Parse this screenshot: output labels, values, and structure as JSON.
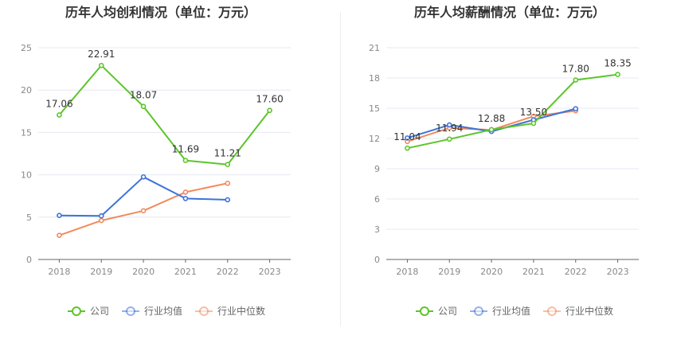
{
  "colors": {
    "company": "#5cc52a",
    "industry_avg": "#3d73d9",
    "industry_median": "#f28a5c",
    "grid": "#e6e8f0",
    "axis": "#666666",
    "divider": "#eeeeee"
  },
  "legend": {
    "company": "公司",
    "industry_avg": "行业均值",
    "industry_median": "行业中位数"
  },
  "chart_data": [
    {
      "type": "line",
      "title": "历年人均创利情况（单位：万元）",
      "categories": [
        "2018",
        "2019",
        "2020",
        "2021",
        "2022",
        "2023"
      ],
      "ylim": [
        0,
        25
      ],
      "yticks": [
        0,
        5,
        10,
        15,
        20,
        25
      ],
      "grid": true,
      "legend_position": "bottom",
      "series": [
        {
          "name": "公司",
          "key": "company",
          "values": [
            17.06,
            22.91,
            18.07,
            11.69,
            11.21,
            17.6
          ],
          "labels": [
            "17.06",
            "22.91",
            "18.07",
            "11.69",
            "11.21",
            "17.60"
          ]
        },
        {
          "name": "行业均值",
          "key": "industry_avg",
          "values": [
            5.2,
            5.15,
            9.75,
            7.2,
            7.05,
            null
          ]
        },
        {
          "name": "行业中位数",
          "key": "industry_median",
          "values": [
            2.85,
            4.6,
            5.75,
            7.95,
            9.0,
            null
          ]
        }
      ]
    },
    {
      "type": "line",
      "title": "历年人均薪酬情况（单位：万元）",
      "categories": [
        "2018",
        "2019",
        "2020",
        "2021",
        "2022",
        "2023"
      ],
      "ylim": [
        0,
        21
      ],
      "yticks": [
        0,
        3,
        6,
        9,
        12,
        15,
        18,
        21
      ],
      "grid": true,
      "legend_position": "bottom",
      "series": [
        {
          "name": "公司",
          "key": "company",
          "values": [
            11.04,
            11.94,
            12.88,
            13.5,
            17.8,
            18.35
          ],
          "labels": [
            "11.04",
            "11.94",
            "12.88",
            "13.50",
            "17.80",
            "18.35"
          ]
        },
        {
          "name": "行业均值",
          "key": "industry_avg",
          "values": [
            12.05,
            13.35,
            12.7,
            13.85,
            14.95,
            null
          ]
        },
        {
          "name": "行业中位数",
          "key": "industry_median",
          "values": [
            11.7,
            13.05,
            12.85,
            14.2,
            14.75,
            null
          ]
        }
      ]
    }
  ]
}
